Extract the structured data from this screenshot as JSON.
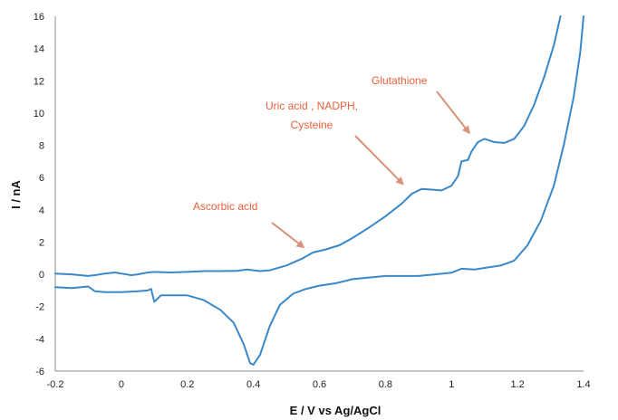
{
  "chart_data": {
    "type": "line",
    "xlabel": "E / V vs Ag/AgCl",
    "ylabel": "I / nA",
    "xlim": [
      -0.2,
      1.4
    ],
    "ylim": [
      -6,
      16
    ],
    "xticks": [
      -0.2,
      0,
      0.2,
      0.4,
      0.6,
      0.8,
      1,
      1.2,
      1.4
    ],
    "yticks": [
      -6,
      -4,
      -2,
      0,
      2,
      4,
      6,
      8,
      10,
      12,
      14,
      16
    ],
    "xtick_labels": [
      "-0.2",
      "0",
      "0.2",
      "0.4",
      "0.6",
      "0.8",
      "1",
      "1.2",
      "1.4"
    ],
    "ytick_labels": [
      "-6",
      "-4",
      "-2",
      "0",
      "2",
      "4",
      "6",
      "8",
      "10",
      "12",
      "14",
      "16"
    ],
    "grid": false,
    "series": [
      {
        "points": [
          [
            -0.2,
            0.05
          ],
          [
            -0.15,
            0.0
          ],
          [
            -0.1,
            -0.1
          ],
          [
            -0.08,
            -0.05
          ],
          [
            -0.05,
            0.05
          ],
          [
            -0.02,
            0.12
          ],
          [
            0.0,
            0.05
          ],
          [
            0.03,
            -0.05
          ],
          [
            0.05,
            0.0
          ],
          [
            0.08,
            0.12
          ],
          [
            0.1,
            0.15
          ],
          [
            0.15,
            0.12
          ],
          [
            0.2,
            0.15
          ],
          [
            0.25,
            0.2
          ],
          [
            0.3,
            0.2
          ],
          [
            0.35,
            0.22
          ],
          [
            0.38,
            0.3
          ],
          [
            0.42,
            0.2
          ],
          [
            0.45,
            0.25
          ],
          [
            0.5,
            0.55
          ],
          [
            0.55,
            1.0
          ],
          [
            0.58,
            1.35
          ],
          [
            0.62,
            1.55
          ],
          [
            0.66,
            1.8
          ],
          [
            0.7,
            2.25
          ],
          [
            0.75,
            2.9
          ],
          [
            0.8,
            3.6
          ],
          [
            0.85,
            4.4
          ],
          [
            0.88,
            5.0
          ],
          [
            0.91,
            5.3
          ],
          [
            0.94,
            5.25
          ],
          [
            0.97,
            5.2
          ],
          [
            1.0,
            5.5
          ],
          [
            1.02,
            6.1
          ],
          [
            1.03,
            7.0
          ],
          [
            1.05,
            7.1
          ],
          [
            1.06,
            7.6
          ],
          [
            1.08,
            8.2
          ],
          [
            1.1,
            8.4
          ],
          [
            1.13,
            8.2
          ],
          [
            1.16,
            8.15
          ],
          [
            1.19,
            8.4
          ],
          [
            1.22,
            9.2
          ],
          [
            1.25,
            10.5
          ],
          [
            1.28,
            12.2
          ],
          [
            1.31,
            14.2
          ],
          [
            1.33,
            16.0
          ]
        ]
      },
      {
        "points": [
          [
            -0.2,
            -0.8
          ],
          [
            -0.15,
            -0.85
          ],
          [
            -0.1,
            -0.75
          ],
          [
            -0.08,
            -1.05
          ],
          [
            -0.05,
            -1.1
          ],
          [
            0.0,
            -1.1
          ],
          [
            0.05,
            -1.05
          ],
          [
            0.08,
            -1.0
          ],
          [
            0.09,
            -0.9
          ],
          [
            0.1,
            -1.7
          ],
          [
            0.12,
            -1.3
          ],
          [
            0.15,
            -1.3
          ],
          [
            0.2,
            -1.3
          ],
          [
            0.25,
            -1.6
          ],
          [
            0.3,
            -2.2
          ],
          [
            0.34,
            -3.0
          ],
          [
            0.37,
            -4.3
          ],
          [
            0.39,
            -5.5
          ],
          [
            0.4,
            -5.6
          ],
          [
            0.42,
            -5.0
          ],
          [
            0.45,
            -3.2
          ],
          [
            0.48,
            -1.9
          ],
          [
            0.52,
            -1.2
          ],
          [
            0.56,
            -0.9
          ],
          [
            0.6,
            -0.7
          ],
          [
            0.65,
            -0.55
          ],
          [
            0.7,
            -0.3
          ],
          [
            0.8,
            -0.1
          ],
          [
            0.9,
            -0.1
          ],
          [
            0.95,
            0.0
          ],
          [
            1.0,
            0.1
          ],
          [
            1.03,
            0.35
          ],
          [
            1.07,
            0.3
          ],
          [
            1.1,
            0.4
          ],
          [
            1.15,
            0.55
          ],
          [
            1.19,
            0.85
          ],
          [
            1.23,
            1.8
          ],
          [
            1.27,
            3.3
          ],
          [
            1.31,
            5.5
          ],
          [
            1.34,
            8.0
          ],
          [
            1.37,
            11.0
          ],
          [
            1.39,
            13.8
          ],
          [
            1.4,
            16.0
          ]
        ]
      }
    ],
    "annotations": [
      {
        "text": "Ascorbic acid",
        "target": [
          0.56,
          1.55
        ]
      },
      {
        "text": "Uric acid , NADPH,",
        "text2": "Cysteine",
        "target": [
          0.86,
          5.45
        ]
      },
      {
        "text": "Glutathione",
        "target": [
          1.06,
          8.6
        ]
      }
    ],
    "colors": {
      "series": "#3a88c8",
      "annotation": "#e8613b",
      "arrow": "#d99277",
      "axis": "#8c8c8c"
    }
  }
}
